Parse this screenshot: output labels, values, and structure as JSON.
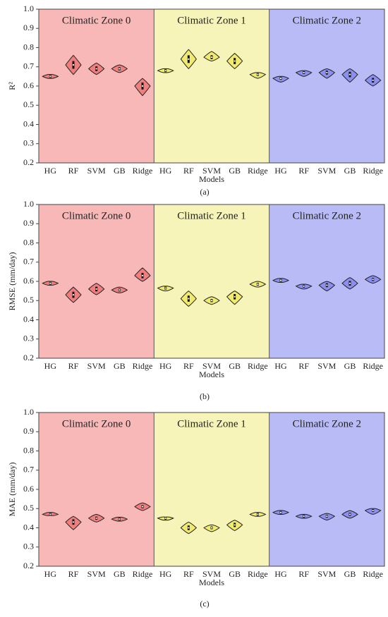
{
  "chart_data": [
    {
      "type": "violin",
      "ylabel": "R²",
      "xlabel": "Models",
      "caption": "(a)",
      "ylim": [
        0.2,
        1.0
      ],
      "yticks": [
        0.2,
        0.3,
        0.4,
        0.5,
        0.6,
        0.7,
        0.8,
        0.9,
        {
          "value": 1.0,
          "label": "1.0"
        }
      ],
      "series": [
        {
          "name": "Climatic Zone 0",
          "background": "#f9b8b8",
          "color": "#ef7f7f",
          "categories": [
            "HG",
            "RF",
            "SVM",
            "GB",
            "Ridge"
          ],
          "values": [
            0.65,
            0.71,
            0.69,
            0.69,
            0.6
          ],
          "mins": [
            0.64,
            0.66,
            0.66,
            0.67,
            0.55
          ],
          "maxs": [
            0.66,
            0.76,
            0.72,
            0.71,
            0.64
          ]
        },
        {
          "name": "Climatic Zone 1",
          "background": "#f6f4b8",
          "color": "#f0ea6e",
          "categories": [
            "HG",
            "RF",
            "SVM",
            "GB",
            "Ridge"
          ],
          "values": [
            0.68,
            0.74,
            0.75,
            0.73,
            0.66
          ],
          "mins": [
            0.67,
            0.69,
            0.73,
            0.69,
            0.64
          ],
          "maxs": [
            0.69,
            0.79,
            0.78,
            0.77,
            0.67
          ]
        },
        {
          "name": "Climatic Zone 2",
          "background": "#b8bbf6",
          "color": "#8a8ff0",
          "categories": [
            "HG",
            "RF",
            "SVM",
            "GB",
            "Ridge"
          ],
          "values": [
            0.64,
            0.67,
            0.67,
            0.66,
            0.63
          ],
          "mins": [
            0.62,
            0.65,
            0.64,
            0.62,
            0.6
          ],
          "maxs": [
            0.65,
            0.68,
            0.69,
            0.69,
            0.66
          ]
        }
      ]
    },
    {
      "type": "violin",
      "ylabel": "RMSE (mm/day)",
      "xlabel": "Models",
      "caption": "(b)",
      "ylim": [
        0.2,
        1.0
      ],
      "yticks": [
        0.2,
        0.3,
        0.4,
        0.5,
        0.6,
        0.7,
        0.8,
        0.9,
        {
          "value": 1.0,
          "label": "1.0"
        }
      ],
      "series": [
        {
          "name": "Climatic Zone 0",
          "background": "#f9b8b8",
          "color": "#ef7f7f",
          "categories": [
            "HG",
            "RF",
            "SVM",
            "GB",
            "Ridge"
          ],
          "values": [
            0.59,
            0.53,
            0.56,
            0.555,
            0.63
          ],
          "mins": [
            0.58,
            0.49,
            0.53,
            0.54,
            0.6
          ],
          "maxs": [
            0.6,
            0.57,
            0.59,
            0.57,
            0.67
          ]
        },
        {
          "name": "Climatic Zone 1",
          "background": "#f6f4b8",
          "color": "#f0ea6e",
          "categories": [
            "HG",
            "RF",
            "SVM",
            "GB",
            "Ridge"
          ],
          "values": [
            0.565,
            0.51,
            0.5,
            0.52,
            0.585
          ],
          "mins": [
            0.55,
            0.47,
            0.48,
            0.48,
            0.57
          ],
          "maxs": [
            0.575,
            0.55,
            0.52,
            0.55,
            0.6
          ]
        },
        {
          "name": "Climatic Zone 2",
          "background": "#b8bbf6",
          "color": "#8a8ff0",
          "categories": [
            "HG",
            "RF",
            "SVM",
            "GB",
            "Ridge"
          ],
          "values": [
            0.605,
            0.575,
            0.58,
            0.59,
            0.61
          ],
          "mins": [
            0.595,
            0.56,
            0.55,
            0.56,
            0.59
          ],
          "maxs": [
            0.615,
            0.585,
            0.6,
            0.62,
            0.63
          ]
        }
      ]
    },
    {
      "type": "violin",
      "ylabel": "MAE (mm/day)",
      "xlabel": "Models",
      "caption": "(c)",
      "ylim": [
        0.2,
        1.0
      ],
      "yticks": [
        0.2,
        0.3,
        0.4,
        0.5,
        0.6,
        0.7,
        0.8,
        0.9,
        {
          "value": 1.0,
          "label": "1.0"
        }
      ],
      "series": [
        {
          "name": "Climatic Zone 0",
          "background": "#f9b8b8",
          "color": "#ef7f7f",
          "categories": [
            "HG",
            "RF",
            "SVM",
            "GB",
            "Ridge"
          ],
          "values": [
            0.47,
            0.43,
            0.45,
            0.445,
            0.51
          ],
          "mins": [
            0.465,
            0.39,
            0.43,
            0.435,
            0.49
          ],
          "maxs": [
            0.48,
            0.46,
            0.47,
            0.455,
            0.53
          ]
        },
        {
          "name": "Climatic Zone 1",
          "background": "#f6f4b8",
          "color": "#f0ea6e",
          "categories": [
            "HG",
            "RF",
            "SVM",
            "GB",
            "Ridge"
          ],
          "values": [
            0.45,
            0.4,
            0.4,
            0.415,
            0.47
          ],
          "mins": [
            0.44,
            0.37,
            0.38,
            0.385,
            0.46
          ],
          "maxs": [
            0.455,
            0.43,
            0.415,
            0.44,
            0.48
          ]
        },
        {
          "name": "Climatic Zone 2",
          "background": "#b8bbf6",
          "color": "#8a8ff0",
          "categories": [
            "HG",
            "RF",
            "SVM",
            "GB",
            "Ridge"
          ],
          "values": [
            0.48,
            0.46,
            0.46,
            0.47,
            0.49
          ],
          "mins": [
            0.47,
            0.45,
            0.44,
            0.45,
            0.47
          ],
          "maxs": [
            0.49,
            0.47,
            0.475,
            0.49,
            0.5
          ]
        }
      ]
    }
  ]
}
